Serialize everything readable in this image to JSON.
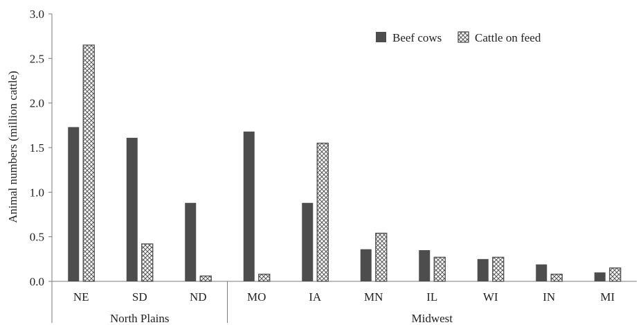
{
  "chart_data": {
    "type": "bar",
    "ylabel": "Animal numbers (million cattle)",
    "ylim": [
      0,
      3.0
    ],
    "yticks": [
      "0.0",
      "0.5",
      "1.0",
      "1.5",
      "2.0",
      "2.5",
      "3.0"
    ],
    "categories": [
      "NE",
      "SD",
      "ND",
      "MO",
      "IA",
      "MN",
      "IL",
      "WI",
      "IN",
      "MI"
    ],
    "groups": [
      {
        "label": "North Plains",
        "categories": [
          "NE",
          "SD",
          "ND"
        ]
      },
      {
        "label": "Midwest",
        "categories": [
          "MO",
          "IA",
          "MN",
          "IL",
          "WI",
          "IN",
          "MI"
        ]
      }
    ],
    "series": [
      {
        "name": "Beef cows",
        "style": "solid",
        "color": "#4d4d4d",
        "values": [
          1.73,
          1.61,
          0.88,
          1.68,
          0.88,
          0.36,
          0.35,
          0.25,
          0.19,
          0.1
        ]
      },
      {
        "name": "Cattle on feed",
        "style": "crosshatch",
        "color": "#4d4d4d",
        "values": [
          2.65,
          0.42,
          0.06,
          0.08,
          1.55,
          0.54,
          0.27,
          0.27,
          0.08,
          0.15
        ]
      }
    ],
    "legend_position": "top-right",
    "grid": false
  }
}
